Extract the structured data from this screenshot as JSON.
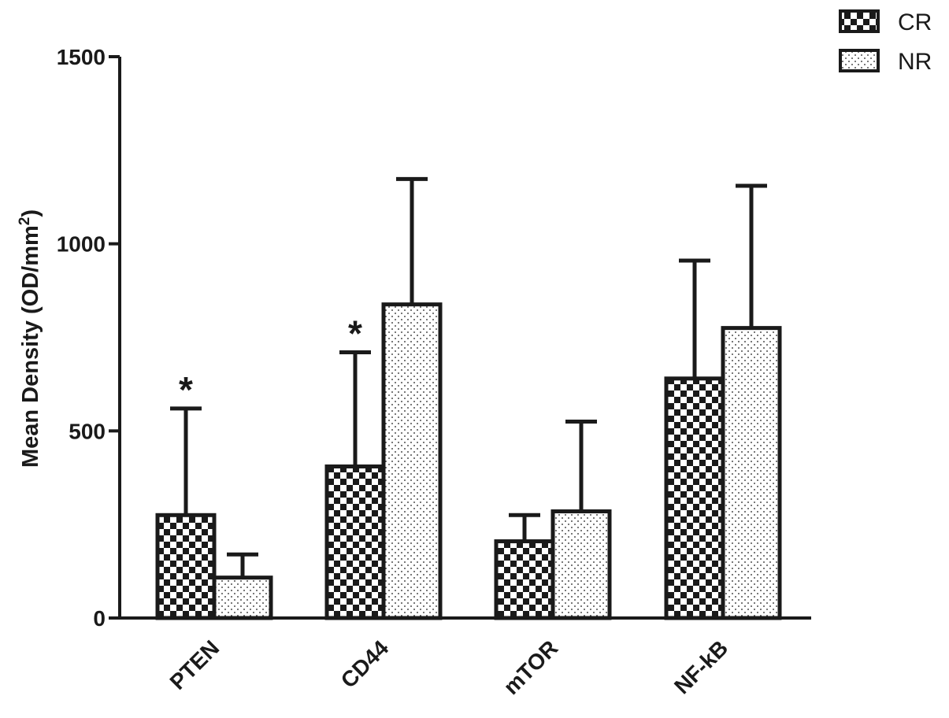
{
  "chart_data": {
    "type": "bar",
    "ylabel": "Mean Density (OD/mm",
    "ylabel_superscript": "2",
    "ylabel_suffix": ")",
    "ylim": [
      0,
      1500
    ],
    "yticks": [
      0,
      500,
      1000,
      1500
    ],
    "categories": [
      "PTEN",
      "CD44",
      "mTOR",
      "NF-kB"
    ],
    "series": [
      {
        "name": "CR",
        "pattern": "checker",
        "values": [
          275,
          405,
          205,
          640
        ],
        "errors": [
          285,
          305,
          70,
          315
        ]
      },
      {
        "name": "NR",
        "pattern": "dots",
        "values": [
          108,
          838,
          285,
          775
        ],
        "errors": [
          62,
          335,
          240,
          380
        ]
      }
    ],
    "annotations": [
      {
        "text": "*",
        "category": 0,
        "series": 0
      },
      {
        "text": "*",
        "category": 1,
        "series": 0
      }
    ],
    "legend_position": "top-right",
    "grid": false,
    "colors": {
      "ink": "#1a1a1a",
      "background": "#ffffff"
    }
  }
}
